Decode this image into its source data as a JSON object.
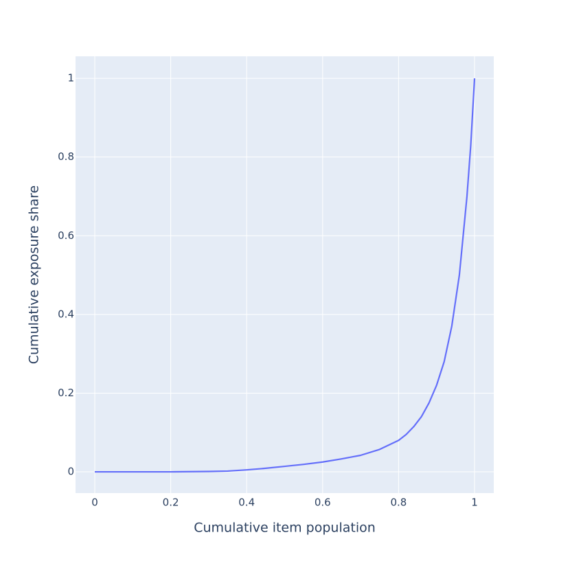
{
  "chart_data": {
    "type": "line",
    "x_label": "Cumulative item population",
    "y_label": "Cumulative exposure share",
    "x": [
      0,
      0.1,
      0.2,
      0.3,
      0.35,
      0.4,
      0.45,
      0.5,
      0.55,
      0.6,
      0.65,
      0.7,
      0.75,
      0.8,
      0.82,
      0.84,
      0.86,
      0.88,
      0.9,
      0.92,
      0.94,
      0.96,
      0.98,
      0.99,
      1
    ],
    "values": [
      0,
      0,
      0,
      0.001,
      0.002,
      0.005,
      0.009,
      0.014,
      0.019,
      0.025,
      0.033,
      0.042,
      0.057,
      0.08,
      0.095,
      0.115,
      0.14,
      0.175,
      0.22,
      0.28,
      0.37,
      0.5,
      0.7,
      0.83,
      1
    ],
    "color": "#636efa",
    "xlim": [
      -0.0506,
      1.0506
    ],
    "ylim": [
      -0.054,
      1.056
    ],
    "xticks": [
      0,
      0.2,
      0.4,
      0.6,
      0.8,
      1
    ],
    "yticks": [
      0,
      0.2,
      0.4,
      0.6,
      0.8,
      1
    ],
    "grid": true
  }
}
